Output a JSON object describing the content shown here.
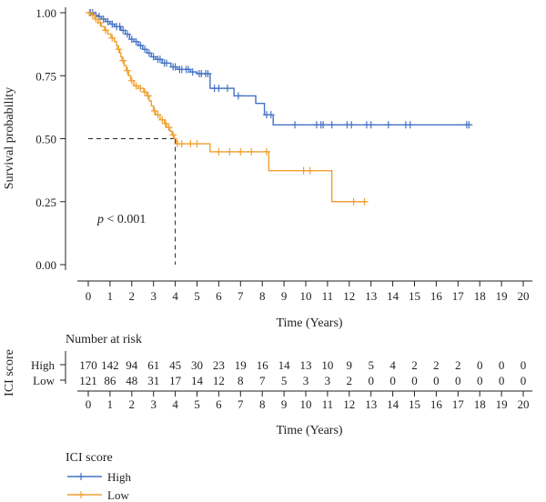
{
  "chart_data": {
    "type": "line",
    "subtype": "kaplan-meier",
    "ylabel": "Survival probability",
    "xlabel": "Time (Years)",
    "xlim": [
      0,
      20
    ],
    "ylim": [
      0,
      1
    ],
    "x_ticks": [
      "0",
      "1",
      "2",
      "3",
      "4",
      "5",
      "6",
      "7",
      "8",
      "9",
      "10",
      "11",
      "12",
      "13",
      "14",
      "15",
      "16",
      "17",
      "18",
      "19",
      "20"
    ],
    "y_ticks": [
      "0.00",
      "0.25",
      "0.50",
      "0.75",
      "1.00"
    ],
    "annotation": {
      "prefix": "p",
      "text": " < 0.001"
    },
    "median_survival": {
      "x": 4,
      "y": 0.5
    },
    "series": [
      {
        "name": "High",
        "color": "#4472c4",
        "steps": [
          [
            0,
            1.0
          ],
          [
            0.25,
            0.99
          ],
          [
            0.4,
            0.985
          ],
          [
            0.6,
            0.975
          ],
          [
            0.8,
            0.965
          ],
          [
            1.0,
            0.955
          ],
          [
            1.2,
            0.945
          ],
          [
            1.5,
            0.93
          ],
          [
            1.7,
            0.915
          ],
          [
            1.9,
            0.895
          ],
          [
            2.1,
            0.885
          ],
          [
            2.3,
            0.87
          ],
          [
            2.5,
            0.855
          ],
          [
            2.7,
            0.84
          ],
          [
            2.9,
            0.825
          ],
          [
            3.1,
            0.815
          ],
          [
            3.4,
            0.8
          ],
          [
            3.8,
            0.785
          ],
          [
            4.1,
            0.775
          ],
          [
            4.7,
            0.765
          ],
          [
            5.0,
            0.758
          ],
          [
            5.6,
            0.7
          ],
          [
            6.7,
            0.67
          ],
          [
            7.7,
            0.64
          ],
          [
            8.1,
            0.595
          ],
          [
            8.5,
            0.555
          ],
          [
            17.6,
            0.555
          ]
        ],
        "censor_x": [
          0.1,
          0.2,
          0.35,
          0.5,
          0.7,
          0.9,
          1.1,
          1.3,
          1.45,
          1.6,
          1.8,
          2.0,
          2.2,
          2.4,
          2.6,
          2.8,
          3.0,
          3.2,
          3.3,
          3.5,
          3.6,
          3.9,
          4.0,
          4.2,
          4.3,
          4.5,
          4.6,
          4.8,
          5.1,
          5.2,
          5.4,
          5.5,
          5.8,
          6.0,
          6.4,
          6.9,
          8.2,
          8.4,
          9.5,
          10.5,
          10.7,
          10.8,
          11.2,
          11.9,
          12.1,
          12.8,
          13.0,
          13.8,
          14.6,
          14.8,
          17.4,
          17.5
        ]
      },
      {
        "name": "Low",
        "color": "#f0a030",
        "steps": [
          [
            0,
            1.0
          ],
          [
            0.15,
            0.99
          ],
          [
            0.3,
            0.975
          ],
          [
            0.45,
            0.96
          ],
          [
            0.6,
            0.945
          ],
          [
            0.75,
            0.93
          ],
          [
            0.9,
            0.915
          ],
          [
            1.05,
            0.9
          ],
          [
            1.2,
            0.885
          ],
          [
            1.3,
            0.87
          ],
          [
            1.35,
            0.855
          ],
          [
            1.45,
            0.84
          ],
          [
            1.5,
            0.825
          ],
          [
            1.55,
            0.81
          ],
          [
            1.65,
            0.79
          ],
          [
            1.75,
            0.77
          ],
          [
            1.85,
            0.75
          ],
          [
            1.95,
            0.73
          ],
          [
            2.1,
            0.71
          ],
          [
            2.3,
            0.7
          ],
          [
            2.55,
            0.685
          ],
          [
            2.7,
            0.67
          ],
          [
            2.8,
            0.65
          ],
          [
            2.9,
            0.63
          ],
          [
            3.0,
            0.61
          ],
          [
            3.1,
            0.595
          ],
          [
            3.3,
            0.575
          ],
          [
            3.5,
            0.56
          ],
          [
            3.6,
            0.545
          ],
          [
            3.75,
            0.53
          ],
          [
            3.85,
            0.515
          ],
          [
            3.95,
            0.5
          ],
          [
            4.05,
            0.48
          ],
          [
            5.6,
            0.448
          ],
          [
            8.3,
            0.373
          ],
          [
            11.2,
            0.25
          ],
          [
            12.8,
            0.25
          ]
        ],
        "censor_x": [
          0.05,
          0.2,
          0.35,
          0.55,
          0.8,
          1.1,
          1.4,
          1.6,
          1.8,
          2.0,
          2.2,
          2.4,
          2.6,
          2.75,
          3.05,
          3.2,
          3.4,
          3.55,
          3.7,
          3.9,
          4.1,
          4.3,
          4.7,
          5.0,
          6.0,
          6.5,
          7.0,
          7.5,
          8.2,
          9.9,
          10.2,
          12.2,
          12.7
        ]
      }
    ]
  },
  "risk_table": {
    "title": "Number at risk",
    "group_label": "ICI score",
    "xlabel": "Time (Years)",
    "x_ticks": [
      "0",
      "1",
      "2",
      "3",
      "4",
      "5",
      "6",
      "7",
      "8",
      "9",
      "10",
      "11",
      "12",
      "13",
      "14",
      "15",
      "16",
      "17",
      "18",
      "19",
      "20"
    ],
    "rows": [
      {
        "label": "High",
        "values": [
          "170",
          "142",
          "94",
          "61",
          "45",
          "30",
          "23",
          "19",
          "16",
          "14",
          "13",
          "10",
          "9",
          "5",
          "4",
          "2",
          "2",
          "2",
          "0",
          "0",
          "0"
        ]
      },
      {
        "label": "Low",
        "values": [
          "121",
          "86",
          "48",
          "31",
          "17",
          "14",
          "12",
          "8",
          "7",
          "5",
          "3",
          "3",
          "2",
          "0",
          "0",
          "0",
          "0",
          "0",
          "0",
          "0",
          "0"
        ]
      }
    ]
  },
  "legend": {
    "title": "ICI score",
    "items": [
      {
        "label": "High",
        "color": "#4472c4"
      },
      {
        "label": "Low",
        "color": "#f0a030"
      }
    ]
  }
}
